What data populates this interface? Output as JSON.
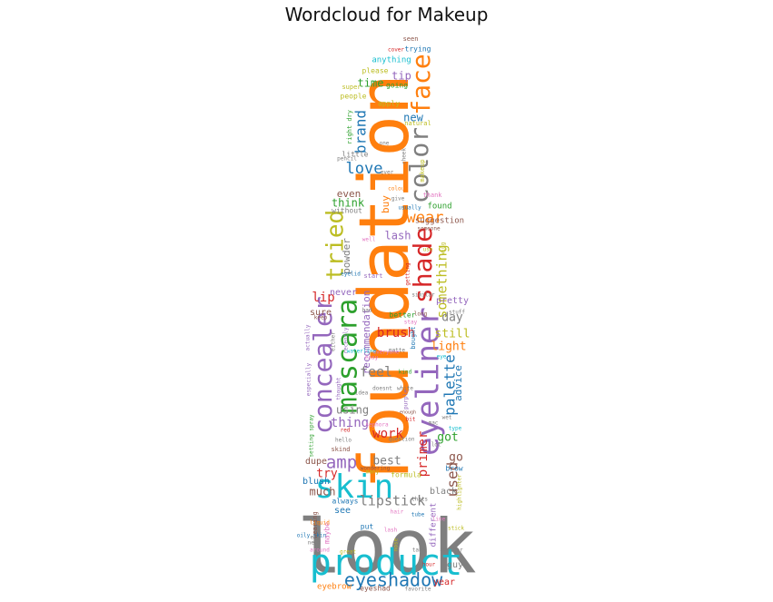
{
  "chart_data": {
    "type": "wordcloud",
    "title": "Wordcloud for Makeup",
    "shape": "bottle",
    "palette": [
      "#1f77b4",
      "#ff7f0e",
      "#2ca02c",
      "#d62728",
      "#9467bd",
      "#8c564b",
      "#e377c2",
      "#7f7f7f",
      "#bcbd22",
      "#17becf"
    ],
    "words": [
      {
        "text": "look",
        "weight": 100,
        "color": "#7f7f7f"
      },
      {
        "text": "foundation",
        "weight": 98,
        "color": "#ff7f0e"
      },
      {
        "text": "product",
        "weight": 62,
        "color": "#17becf"
      },
      {
        "text": "eyeliner",
        "weight": 52,
        "color": "#9467bd"
      },
      {
        "text": "skin",
        "weight": 50,
        "color": "#17becf"
      },
      {
        "text": "mascara",
        "weight": 47,
        "color": "#2ca02c"
      },
      {
        "text": "concealer",
        "weight": 45,
        "color": "#9467bd"
      },
      {
        "text": "shade",
        "weight": 44,
        "color": "#d62728"
      },
      {
        "text": "color",
        "weight": 42,
        "color": "#7f7f7f"
      },
      {
        "text": "face",
        "weight": 42,
        "color": "#ff7f0e"
      },
      {
        "text": "tried",
        "weight": 38,
        "color": "#bcbd22"
      },
      {
        "text": "eyeshadow",
        "weight": 30,
        "color": "#1f77b4"
      },
      {
        "text": "amp",
        "weight": 26,
        "color": "#9467bd"
      },
      {
        "text": "love",
        "weight": 24,
        "color": "#1f77b4"
      },
      {
        "text": "wear",
        "weight": 24,
        "color": "#ff7f0e"
      },
      {
        "text": "palette",
        "weight": 24,
        "color": "#1f77b4"
      },
      {
        "text": "brand",
        "weight": 22,
        "color": "#1f77b4"
      },
      {
        "text": "used",
        "weight": 22,
        "color": "#8c564b"
      },
      {
        "text": "lipstick",
        "weight": 21,
        "color": "#7f7f7f"
      },
      {
        "text": "something",
        "weight": 20,
        "color": "#bcbd22"
      },
      {
        "text": "feel",
        "weight": 19,
        "color": "#7f7f7f"
      },
      {
        "text": "brush",
        "weight": 18,
        "color": "#d62728"
      },
      {
        "text": "lip",
        "weight": 18,
        "color": "#d62728"
      },
      {
        "text": "primer",
        "weight": 18,
        "color": "#d62728"
      },
      {
        "text": "thing",
        "weight": 18,
        "color": "#9467bd"
      },
      {
        "text": "work",
        "weight": 18,
        "color": "#d62728"
      },
      {
        "text": "got",
        "weight": 17,
        "color": "#2ca02c"
      },
      {
        "text": "light",
        "weight": 17,
        "color": "#ff7f0e"
      },
      {
        "text": "still",
        "weight": 17,
        "color": "#bcbd22"
      },
      {
        "text": "day",
        "weight": 17,
        "color": "#7f7f7f"
      },
      {
        "text": "best",
        "weight": 16,
        "color": "#7f7f7f"
      },
      {
        "text": "try",
        "weight": 16,
        "color": "#d62728"
      },
      {
        "text": "go",
        "weight": 16,
        "color": "#8c564b"
      },
      {
        "text": "time",
        "weight": 15,
        "color": "#2ca02c"
      },
      {
        "text": "new",
        "weight": 15,
        "color": "#1f77b4"
      },
      {
        "text": "tip",
        "weight": 15,
        "color": "#9467bd"
      },
      {
        "text": "lash",
        "weight": 15,
        "color": "#9467bd"
      },
      {
        "text": "think",
        "weight": 15,
        "color": "#2ca02c"
      },
      {
        "text": "much",
        "weight": 15,
        "color": "#8c564b"
      },
      {
        "text": "using",
        "weight": 15,
        "color": "#7f7f7f"
      },
      {
        "text": "advice",
        "weight": 14,
        "color": "#1f77b4"
      },
      {
        "text": "powder",
        "weight": 14,
        "color": "#7f7f7f"
      },
      {
        "text": "recommendation",
        "weight": 14,
        "color": "#9467bd"
      },
      {
        "text": "even",
        "weight": 14,
        "color": "#8c564b"
      },
      {
        "text": "buy",
        "weight": 14,
        "color": "#ff7f0e"
      },
      {
        "text": "guy",
        "weight": 12,
        "color": "#7f7f7f"
      },
      {
        "text": "year",
        "weight": 12,
        "color": "#d62728"
      },
      {
        "text": "blush",
        "weight": 12,
        "color": "#1f77b4"
      },
      {
        "text": "black",
        "weight": 12,
        "color": "#7f7f7f"
      },
      {
        "text": "sure",
        "weight": 11,
        "color": "#8c564b"
      },
      {
        "text": "pretty",
        "weight": 11,
        "color": "#9467bd"
      },
      {
        "text": "never",
        "weight": 11,
        "color": "#9467bd"
      },
      {
        "text": "dupe",
        "weight": 11,
        "color": "#8c564b"
      },
      {
        "text": "see",
        "weight": 11,
        "color": "#1f77b4"
      },
      {
        "text": "different",
        "weight": 11,
        "color": "#9467bd"
      },
      {
        "text": "found",
        "weight": 11,
        "color": "#2ca02c"
      },
      {
        "text": "suggestion",
        "weight": 11,
        "color": "#8c564b"
      },
      {
        "text": "anything",
        "weight": 10,
        "color": "#17becf"
      },
      {
        "text": "going",
        "weight": 10,
        "color": "#2ca02c"
      },
      {
        "text": "people",
        "weight": 10,
        "color": "#bcbd22"
      },
      {
        "text": "apply",
        "weight": 10,
        "color": "#bcbd22"
      },
      {
        "text": "little",
        "weight": 10,
        "color": "#7f7f7f"
      },
      {
        "text": "without",
        "weight": 10,
        "color": "#7f7f7f"
      },
      {
        "text": "better",
        "weight": 10,
        "color": "#2ca02c"
      },
      {
        "text": "brow",
        "weight": 10,
        "color": "#1f77b4"
      },
      {
        "text": "eyebrow",
        "weight": 10,
        "color": "#ff7f0e"
      },
      {
        "text": "eyeshad",
        "weight": 9,
        "color": "#8c564b"
      },
      {
        "text": "please",
        "weight": 9,
        "color": "#bcbd22"
      },
      {
        "text": "trying",
        "weight": 9,
        "color": "#1f77b4"
      },
      {
        "text": "formula",
        "weight": 9,
        "color": "#bcbd22"
      },
      {
        "text": "always",
        "weight": 9,
        "color": "#1f77b4"
      },
      {
        "text": "start",
        "weight": 9,
        "color": "#9467bd"
      },
      {
        "text": "maybe",
        "weight": 9,
        "color": "#e377c2"
      },
      {
        "text": "put",
        "weight": 9,
        "color": "#1f77b4"
      },
      {
        "text": "super",
        "weight": 9,
        "color": "#bcbd22"
      },
      {
        "text": "thank",
        "weight": 9,
        "color": "#e377c2"
      },
      {
        "text": "bought",
        "weight": 9,
        "color": "#1f77b4"
      },
      {
        "text": "natural",
        "weight": 8,
        "color": "#bcbd22"
      },
      {
        "text": "seen",
        "weight": 8,
        "color": "#8c564b"
      },
      {
        "text": "cover",
        "weight": 8,
        "color": "#d62728"
      },
      {
        "text": "give",
        "weight": 8,
        "color": "#7f7f7f"
      },
      {
        "text": "getting",
        "weight": 8,
        "color": "#d62728"
      },
      {
        "text": "right dry",
        "weight": 8,
        "color": "#2ca02c"
      },
      {
        "text": "similar",
        "weight": 8,
        "color": "#7f7f7f"
      },
      {
        "text": "well",
        "weight": 8,
        "color": "#e377c2"
      },
      {
        "text": "pencil",
        "weight": 8,
        "color": "#7f7f7f"
      },
      {
        "text": "long",
        "weight": 8,
        "color": "#8c564b"
      },
      {
        "text": "great",
        "weight": 8,
        "color": "#bcbd22"
      },
      {
        "text": "around",
        "weight": 8,
        "color": "#e377c2"
      },
      {
        "text": "wearing",
        "weight": 8,
        "color": "#8c564b"
      },
      {
        "text": "usually",
        "weight": 8,
        "color": "#1f77b4"
      },
      {
        "text": "colour",
        "weight": 8,
        "color": "#ff7f0e"
      },
      {
        "text": "highlighter",
        "weight": 8,
        "color": "#bcbd22"
      },
      {
        "text": "stuff",
        "weight": 8,
        "color": "#7f7f7f"
      },
      {
        "text": "skind",
        "weight": 8,
        "color": "#8c564b"
      },
      {
        "text": "matte",
        "weight": 8,
        "color": "#7f7f7f"
      },
      {
        "text": "favorite",
        "weight": 8,
        "color": "#7f7f7f"
      },
      {
        "text": "eyelid",
        "weight": 8,
        "color": "#1f77b4"
      },
      {
        "text": "stick",
        "weight": 8,
        "color": "#bcbd22"
      },
      {
        "text": "hour",
        "weight": 8,
        "color": "#d62728"
      },
      {
        "text": "idea",
        "weight": 7,
        "color": "#7f7f7f"
      },
      {
        "text": "bit",
        "weight": 7,
        "color": "#d62728"
      },
      {
        "text": "sephora",
        "weight": 7,
        "color": "#e377c2"
      },
      {
        "text": "hello",
        "weight": 7,
        "color": "#7f7f7f"
      },
      {
        "text": "wondering",
        "weight": 7,
        "color": "#8c564b"
      },
      {
        "text": "many",
        "weight": 7,
        "color": "#bcbd22"
      },
      {
        "text": "enough",
        "weight": 7,
        "color": "#8c564b"
      },
      {
        "text": "question",
        "weight": 7,
        "color": "#7f7f7f"
      },
      {
        "text": "red",
        "weight": 7,
        "color": "#d62728"
      },
      {
        "text": "lot",
        "weight": 7,
        "color": "#7f7f7f"
      },
      {
        "text": "keep",
        "weight": 7,
        "color": "#8c564b"
      },
      {
        "text": "bad",
        "weight": 7,
        "color": "#7f7f7f"
      },
      {
        "text": "stay",
        "weight": 7,
        "color": "#e377c2"
      },
      {
        "text": "everyone",
        "weight": 7,
        "color": "#e377c2"
      },
      {
        "text": "one",
        "weight": 7,
        "color": "#7f7f7f"
      },
      {
        "text": "easy",
        "weight": 7,
        "color": "#e377c2"
      },
      {
        "text": "makeup",
        "weight": 7,
        "color": "#bcbd22"
      },
      {
        "text": "thats",
        "weight": 7,
        "color": "#7f7f7f"
      },
      {
        "text": "type",
        "weight": 7,
        "color": "#17becf"
      },
      {
        "text": "hair",
        "weight": 7,
        "color": "#e377c2"
      },
      {
        "text": "take",
        "weight": 7,
        "color": "#7f7f7f"
      },
      {
        "text": "another",
        "weight": 7,
        "color": "#7f7f7f"
      },
      {
        "text": "tube",
        "weight": 7,
        "color": "#1f77b4"
      },
      {
        "text": "someone",
        "weight": 7,
        "color": "#8c564b"
      },
      {
        "text": "lash",
        "weight": 7,
        "color": "#e377c2"
      },
      {
        "text": "ever",
        "weight": 7,
        "color": "#7f7f7f"
      },
      {
        "text": "use",
        "weight": 7,
        "color": "#bcbd22"
      },
      {
        "text": "eye",
        "weight": 7,
        "color": "#17becf"
      },
      {
        "text": "mac",
        "weight": 7,
        "color": "#7f7f7f"
      },
      {
        "text": "wet",
        "weight": 7,
        "color": "#7f7f7f"
      },
      {
        "text": "need",
        "weight": 7,
        "color": "#7f7f7f"
      },
      {
        "text": "liquid",
        "weight": 7,
        "color": "#ff7f0e"
      },
      {
        "text": "oily skin",
        "weight": 7,
        "color": "#1f77b4"
      },
      {
        "text": "setting spray",
        "weight": 7,
        "color": "#2ca02c"
      },
      {
        "text": "especially",
        "weight": 7,
        "color": "#9467bd"
      },
      {
        "text": "actually",
        "weight": 7,
        "color": "#9467bd"
      },
      {
        "text": "either",
        "weight": 7,
        "color": "#7f7f7f"
      },
      {
        "text": "thought",
        "weight": 7,
        "color": "#9467bd"
      },
      {
        "text": "recently",
        "weight": 7,
        "color": "#9467bd"
      },
      {
        "text": "doesnt",
        "weight": 7,
        "color": "#7f7f7f"
      },
      {
        "text": "white",
        "weight": 7,
        "color": "#7f7f7f"
      },
      {
        "text": "etc",
        "weight": 7,
        "color": "#7f7f7f"
      },
      {
        "text": "nose",
        "weight": 7,
        "color": "#bcbd22"
      },
      {
        "text": "wing",
        "weight": 7,
        "color": "#bcbd22"
      },
      {
        "text": "line",
        "weight": 7,
        "color": "#e377c2"
      },
      {
        "text": "cheek",
        "weight": 7,
        "color": "#7f7f7f"
      },
      {
        "text": "kind",
        "weight": 7,
        "color": "#2ca02c"
      },
      {
        "text": "purple",
        "weight": 7,
        "color": "#9467bd"
      },
      {
        "text": "waterline",
        "weight": 7,
        "color": "#17becf"
      }
    ]
  }
}
